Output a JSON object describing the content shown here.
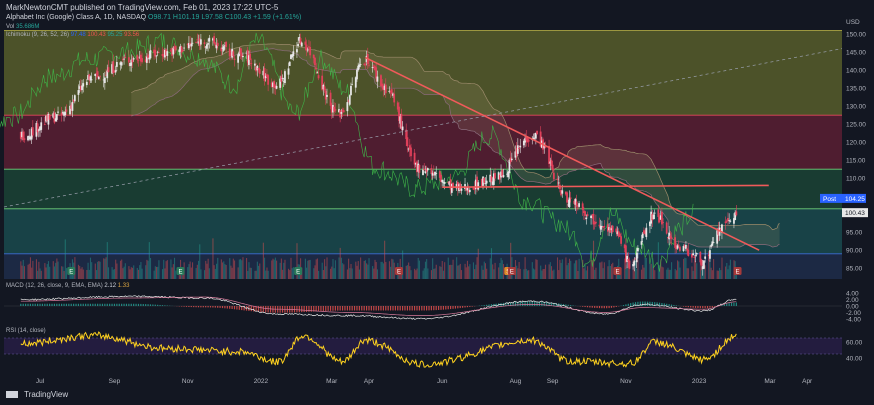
{
  "header": {
    "publisher": "MarkNewtonCMT published on TradingView.com, Feb 01, 2023 17:22 UTC-5",
    "symbol": "Alphabet Inc (Google) Class A, 1D, NASDAQ",
    "ohlc": "O98.71 H101.19 L97.58 C100.43 +1.59 (+1.61%)"
  },
  "indicators": {
    "vol": "Vol",
    "vol_value": "35.686M",
    "ichimoku": "Ichimoku (9, 26, 52, 26)",
    "ichimoku_values": [
      "97.48",
      "100.43",
      "95.25",
      "93.56"
    ],
    "macd": "MACD (12, 26, close, 9, EMA, EMA)",
    "macd_values": [
      "2.12",
      "1.33"
    ],
    "rsi": "RSI (14, close)"
  },
  "footer": {
    "brand": "TradingView"
  },
  "price_axis": {
    "unit": "USD",
    "labels": [
      "150.00",
      "145.00",
      "140.00",
      "135.00",
      "130.00",
      "125.00",
      "120.00",
      "115.00",
      "110.00",
      "105.00",
      "100.00",
      "95.00",
      "90.00",
      "85.00"
    ],
    "post_label": "Post",
    "post_value": "104.25",
    "last_value": "100.43"
  },
  "macd_axis": {
    "labels": [
      "4.00",
      "2.00",
      "0.00",
      "-2.00",
      "-4.00"
    ]
  },
  "rsi_axis": {
    "labels": [
      "60.00",
      "40.00"
    ]
  },
  "time_axis": {
    "labels": [
      "Jul",
      "Sep",
      "Nov",
      "2022",
      "Mar",
      "Apr",
      "Jun",
      "Aug",
      "Sep",
      "Nov",
      "2023",
      "Mar",
      "Apr"
    ]
  },
  "colors": {
    "up": "#26a69a",
    "down": "#ef5350",
    "zone_olive": "#575d2a",
    "zone_maroon": "#5b1e33",
    "zone_green": "#1b4335",
    "zone_teal": "#1a4a4d",
    "zone_navy": "#1e2d4a",
    "trendline": "#f05a5a",
    "rsi_line": "#ffd21f"
  },
  "chart_data": [
    {
      "type": "candlestick",
      "title": "Alphabet Inc (Google) Class A, 1D, NASDAQ",
      "ylim": [
        82,
        152
      ],
      "y_unit": "USD",
      "keypoints": [
        {
          "date": "2021-06-15",
          "close": 122
        },
        {
          "date": "2021-07-15",
          "close": 127
        },
        {
          "date": "2021-08-15",
          "close": 138
        },
        {
          "date": "2021-09-15",
          "close": 143
        },
        {
          "date": "2021-10-15",
          "close": 145
        },
        {
          "date": "2021-11-15",
          "close": 148
        },
        {
          "date": "2021-12-15",
          "close": 144
        },
        {
          "date": "2022-01-15",
          "close": 136
        },
        {
          "date": "2022-02-03",
          "close": 148
        },
        {
          "date": "2022-03-07",
          "close": 128
        },
        {
          "date": "2022-03-29",
          "close": 143
        },
        {
          "date": "2022-04-15",
          "close": 135
        },
        {
          "date": "2022-05-12",
          "close": 113
        },
        {
          "date": "2022-06-16",
          "close": 107
        },
        {
          "date": "2022-07-15",
          "close": 110
        },
        {
          "date": "2022-08-16",
          "close": 122
        },
        {
          "date": "2022-09-15",
          "close": 104
        },
        {
          "date": "2022-10-10",
          "close": 98
        },
        {
          "date": "2022-10-26",
          "close": 94
        },
        {
          "date": "2022-11-04",
          "close": 86
        },
        {
          "date": "2022-11-25",
          "close": 100
        },
        {
          "date": "2022-12-15",
          "close": 91
        },
        {
          "date": "2023-01-05",
          "close": 87
        },
        {
          "date": "2023-01-20",
          "close": 96
        },
        {
          "date": "2023-02-01",
          "close": 100.43
        }
      ],
      "horizontal_levels": [
        {
          "name": "zone",
          "from": 127.5,
          "to": 151
        },
        {
          "name": "zone",
          "from": 112.5,
          "to": 127.5
        },
        {
          "name": "zone",
          "from": 101.5,
          "to": 112.5
        },
        {
          "name": "zone",
          "from": 89,
          "to": 101.5
        },
        {
          "name": "zone",
          "from": 82,
          "to": 89
        }
      ],
      "trendlines": [
        {
          "from": {
            "date": "2022-03-29",
            "value": 143.5
          },
          "to": {
            "date": "2023-02-20",
            "value": 90
          }
        },
        {
          "from": {
            "date": "2022-06-01",
            "value": 107.5
          },
          "to": {
            "date": "2023-02-28",
            "value": 108
          }
        }
      ],
      "dotted_trendline": {
        "from": {
          "date": "2021-06-01",
          "value": 102
        },
        "to": {
          "date": "2023-04-30",
          "value": 146
        }
      },
      "events": [
        {
          "date": "2021-07-27",
          "label": "E"
        },
        {
          "date": "2021-10-26",
          "label": "E"
        },
        {
          "date": "2022-02-01",
          "label": "E"
        },
        {
          "date": "2022-04-26",
          "label": "E"
        },
        {
          "date": "2022-07-26",
          "label": "S"
        },
        {
          "date": "2022-07-29",
          "label": "E"
        },
        {
          "date": "2022-10-25",
          "label": "E"
        },
        {
          "date": "2023-02-02",
          "label": "E"
        }
      ]
    },
    {
      "type": "line",
      "title": "MACD (12, 26, close, 9, EMA, EMA)",
      "ylim": [
        -5,
        5
      ],
      "keypoints": [
        {
          "date": "2021-06-15",
          "macd": 2.0,
          "signal": 1.5
        },
        {
          "date": "2021-09-15",
          "macd": 3.0,
          "signal": 2.5
        },
        {
          "date": "2021-11-15",
          "macd": 2.5,
          "signal": 2.8
        },
        {
          "date": "2022-01-15",
          "macd": -2.5,
          "signal": -1.0
        },
        {
          "date": "2022-03-15",
          "macd": -3.0,
          "signal": -2.0
        },
        {
          "date": "2022-05-15",
          "macd": -4.0,
          "signal": -3.0
        },
        {
          "date": "2022-08-15",
          "macd": 1.5,
          "signal": 0.5
        },
        {
          "date": "2022-10-15",
          "macd": -2.5,
          "signal": -2.0
        },
        {
          "date": "2022-11-15",
          "macd": 0.5,
          "signal": -0.5
        },
        {
          "date": "2023-01-05",
          "macd": -1.5,
          "signal": -1.0
        },
        {
          "date": "2023-02-01",
          "macd": 2.12,
          "signal": 1.33
        }
      ]
    },
    {
      "type": "line",
      "title": "RSI (14, close)",
      "ylim": [
        25,
        80
      ],
      "keypoints": [
        {
          "date": "2021-06-15",
          "value": 58
        },
        {
          "date": "2021-08-15",
          "value": 68
        },
        {
          "date": "2021-10-15",
          "value": 52
        },
        {
          "date": "2021-12-15",
          "value": 48
        },
        {
          "date": "2022-01-15",
          "value": 35
        },
        {
          "date": "2022-02-05",
          "value": 68
        },
        {
          "date": "2022-03-10",
          "value": 35
        },
        {
          "date": "2022-03-29",
          "value": 62
        },
        {
          "date": "2022-05-15",
          "value": 32
        },
        {
          "date": "2022-08-15",
          "value": 62
        },
        {
          "date": "2022-09-15",
          "value": 36
        },
        {
          "date": "2022-11-05",
          "value": 33
        },
        {
          "date": "2022-11-25",
          "value": 60
        },
        {
          "date": "2023-01-05",
          "value": 38
        },
        {
          "date": "2023-02-01",
          "value": 68
        }
      ]
    }
  ]
}
